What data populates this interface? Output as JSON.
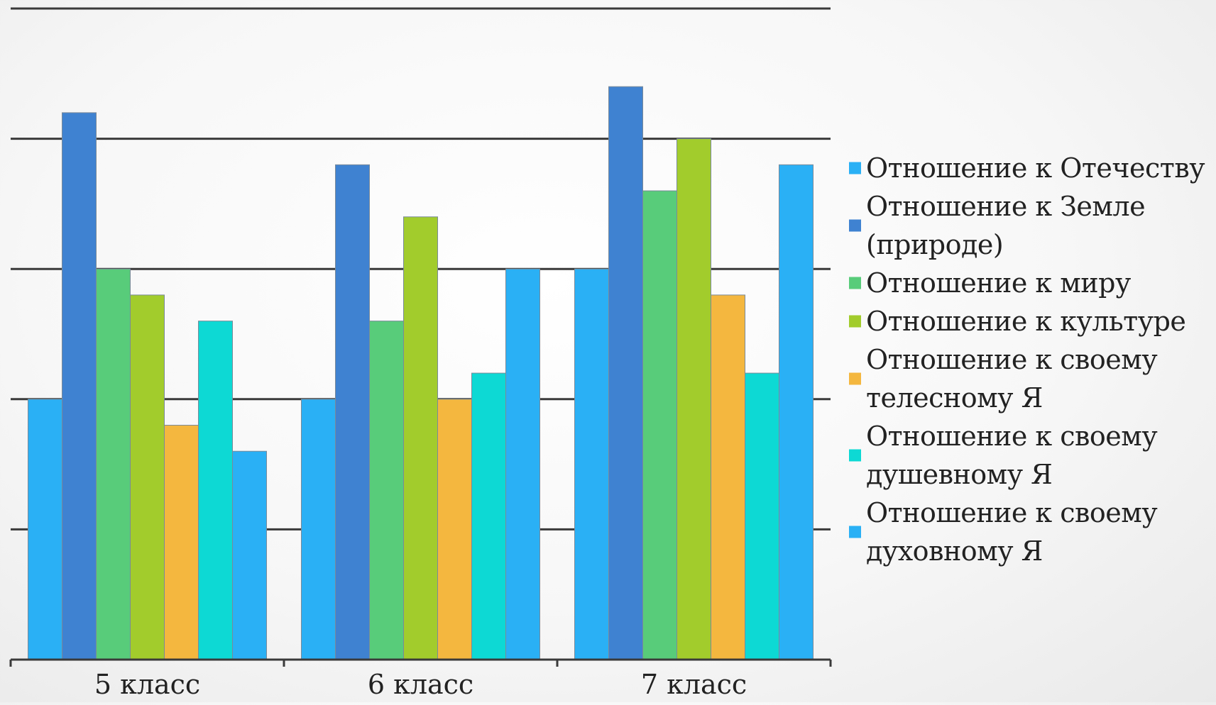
{
  "chart_data": {
    "type": "bar",
    "title": "",
    "xlabel": "",
    "ylabel": "",
    "categories": [
      "5 класс",
      "6 класс",
      "7 класс"
    ],
    "ylim": [
      0,
      5
    ],
    "y_gridlines": [
      1,
      2,
      3,
      4,
      5
    ],
    "grid": true,
    "legend_position": "right",
    "series": [
      {
        "name": "Отношение к Отечеству",
        "color": "#2ab0f5",
        "values": [
          2.0,
          2.0,
          3.0
        ]
      },
      {
        "name": "Отношение к Земле (природе)",
        "color": "#3f82d1",
        "values": [
          4.2,
          3.8,
          4.4
        ]
      },
      {
        "name": "Отношение к миру",
        "color": "#58cc7a",
        "values": [
          3.0,
          2.6,
          3.6
        ]
      },
      {
        "name": "Отношение к культуре",
        "color": "#a2cc2c",
        "values": [
          2.8,
          3.4,
          4.0
        ]
      },
      {
        "name": "Отношение к своему телесному Я",
        "color": "#f4b73f",
        "values": [
          1.8,
          2.0,
          2.8
        ]
      },
      {
        "name": "Отношение к своему душевному Я",
        "color": "#0dd9d4",
        "values": [
          2.6,
          2.2,
          2.2
        ]
      },
      {
        "name": "Отношение к своему духовному Я",
        "color": "#2ab0f5",
        "values": [
          1.6,
          3.0,
          3.8
        ]
      }
    ]
  }
}
